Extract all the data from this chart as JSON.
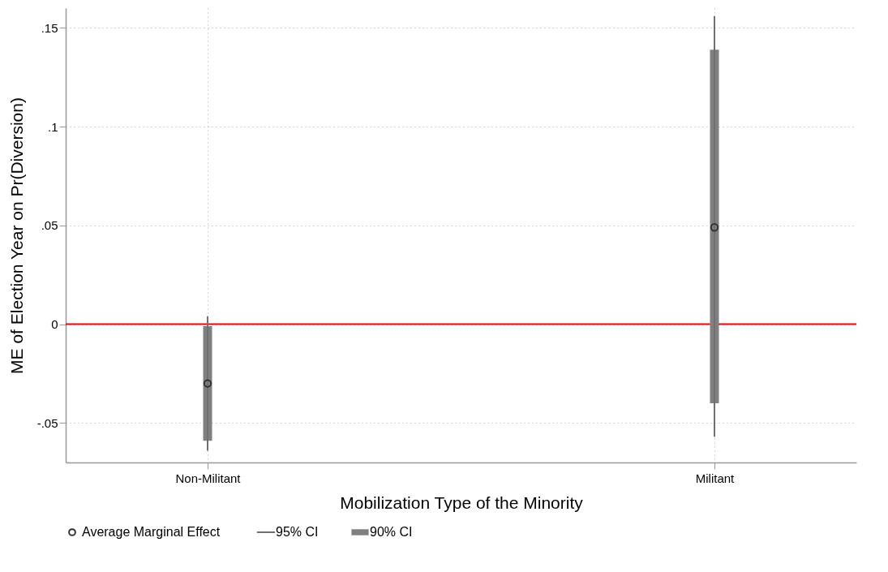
{
  "chart_data": {
    "type": "scatter",
    "xlabel": "Mobilization Type of the Minority",
    "ylabel": "ME of Election Year on Pr(Diversion)",
    "categories": [
      "Non-Militant",
      "Militant"
    ],
    "ylim": [
      -0.07,
      0.16
    ],
    "yticks": [
      {
        "value": -0.05,
        "label": "-.05"
      },
      0,
      {
        "value": 0.05,
        "label": ".05"
      },
      {
        "value": 0.1,
        "label": ".1"
      },
      {
        "value": 0.15,
        "label": ".15"
      }
    ],
    "grid": true,
    "legend": "bottom",
    "series": [
      {
        "name": "90% CI",
        "type": "bar",
        "color": "#808080",
        "base": [
          -0.059,
          -0.04
        ],
        "values": [
          0.058,
          0.179
        ]
      },
      {
        "name": "95% CI",
        "type": "bar",
        "color": "#707070",
        "base": [
          -0.064,
          -0.057
        ],
        "values": [
          0.068,
          0.213
        ]
      },
      {
        "name": "Average Marginal Effect",
        "marker": "circle",
        "color": "#333333",
        "values": [
          -0.03,
          0.049
        ]
      }
    ],
    "ref_lines": [
      {
        "axis": "y",
        "value": 0,
        "color": "#ff0000"
      }
    ]
  }
}
